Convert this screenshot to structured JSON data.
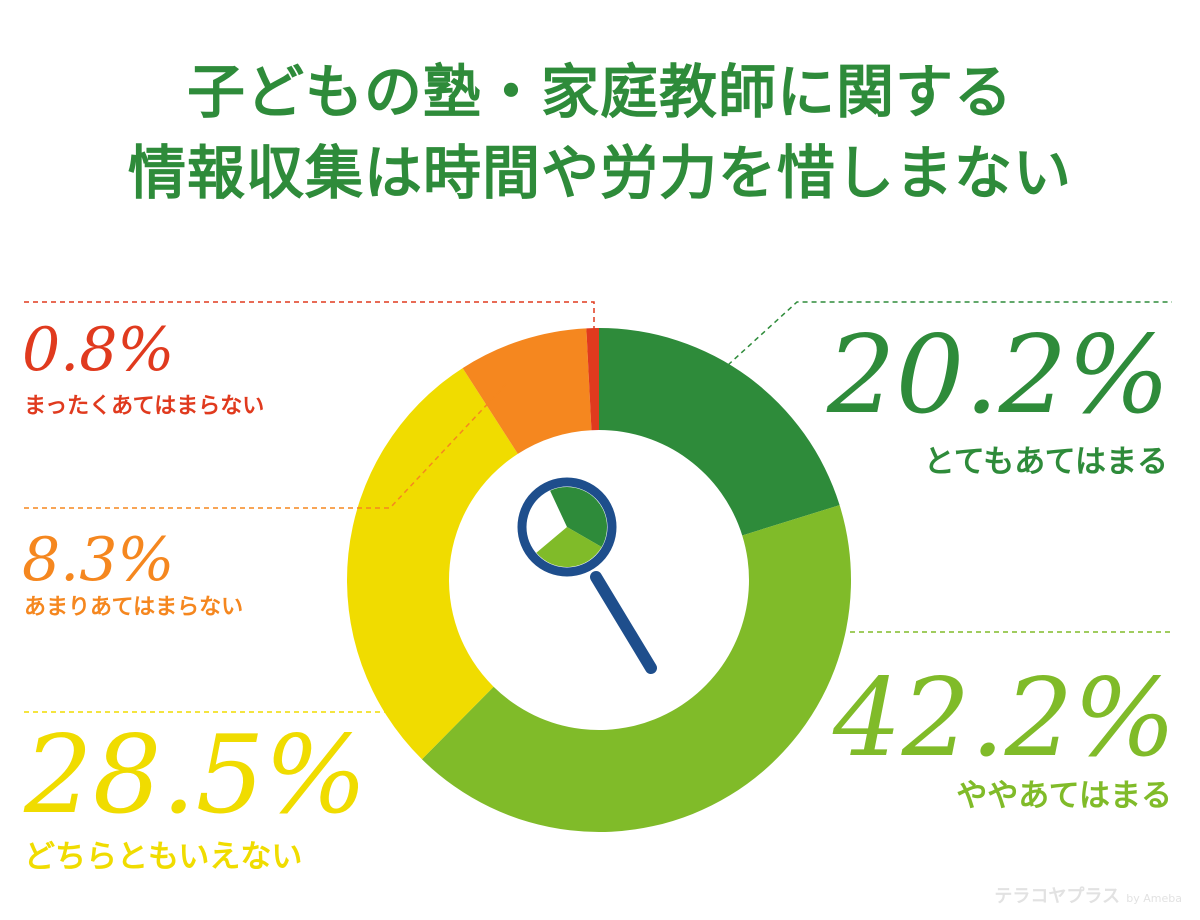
{
  "title_lines": [
    "子どもの塾・家庭教師に関する",
    "情報収集は時間や労力を惜しまない"
  ],
  "chart_data": {
    "type": "pie",
    "donut": true,
    "start_angle_deg": 0,
    "direction": "clockwise",
    "categories": [
      "とてもあてはまる",
      "ややあてはまる",
      "どちらともいえない",
      "あまりあてはまらない",
      "まったくあてはまらない"
    ],
    "values": [
      20.2,
      42.2,
      28.5,
      8.3,
      0.8
    ],
    "value_labels": [
      "20.2%",
      "42.2%",
      "28.5%",
      "8.3%",
      "0.8%"
    ],
    "colors": [
      "#2e8b3a",
      "#80bb29",
      "#f0dc00",
      "#f5871f",
      "#e03a1e"
    ],
    "center_icon": "magnifying-glass-icon"
  },
  "watermark": {
    "brand": "テラコヤプラス",
    "by": "by Ameba"
  }
}
